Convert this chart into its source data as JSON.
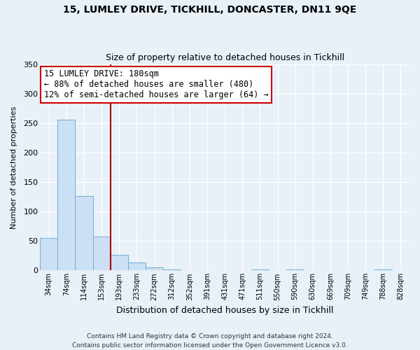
{
  "title": "15, LUMLEY DRIVE, TICKHILL, DONCASTER, DN11 9QE",
  "subtitle": "Size of property relative to detached houses in Tickhill",
  "xlabel": "Distribution of detached houses by size in Tickhill",
  "ylabel": "Number of detached properties",
  "bar_color": "#cce0f5",
  "bar_edge_color": "#6aaed6",
  "background_color": "#e8f0f8",
  "grid_color": "#ffffff",
  "fig_bg_color": "#e8f0f8",
  "annotation_box_color": "#ffffff",
  "annotation_box_edge": "#cc0000",
  "vline_color": "#aa0000",
  "annotation_line1": "15 LUMLEY DRIVE: 180sqm",
  "annotation_line2": "← 88% of detached houses are smaller (480)",
  "annotation_line3": "12% of semi-detached houses are larger (64) →",
  "categories": [
    "34sqm",
    "74sqm",
    "114sqm",
    "153sqm",
    "193sqm",
    "233sqm",
    "272sqm",
    "312sqm",
    "352sqm",
    "391sqm",
    "431sqm",
    "471sqm",
    "511sqm",
    "550sqm",
    "590sqm",
    "630sqm",
    "669sqm",
    "709sqm",
    "749sqm",
    "788sqm",
    "828sqm"
  ],
  "values": [
    55,
    256,
    127,
    58,
    27,
    13,
    5,
    2,
    0,
    0,
    0,
    0,
    2,
    0,
    2,
    0,
    0,
    0,
    0,
    2,
    0
  ],
  "ylim": [
    0,
    350
  ],
  "yticks": [
    0,
    50,
    100,
    150,
    200,
    250,
    300,
    350
  ],
  "vline_x_index": 4,
  "footer_line1": "Contains HM Land Registry data © Crown copyright and database right 2024.",
  "footer_line2": "Contains public sector information licensed under the Open Government Licence v3.0."
}
